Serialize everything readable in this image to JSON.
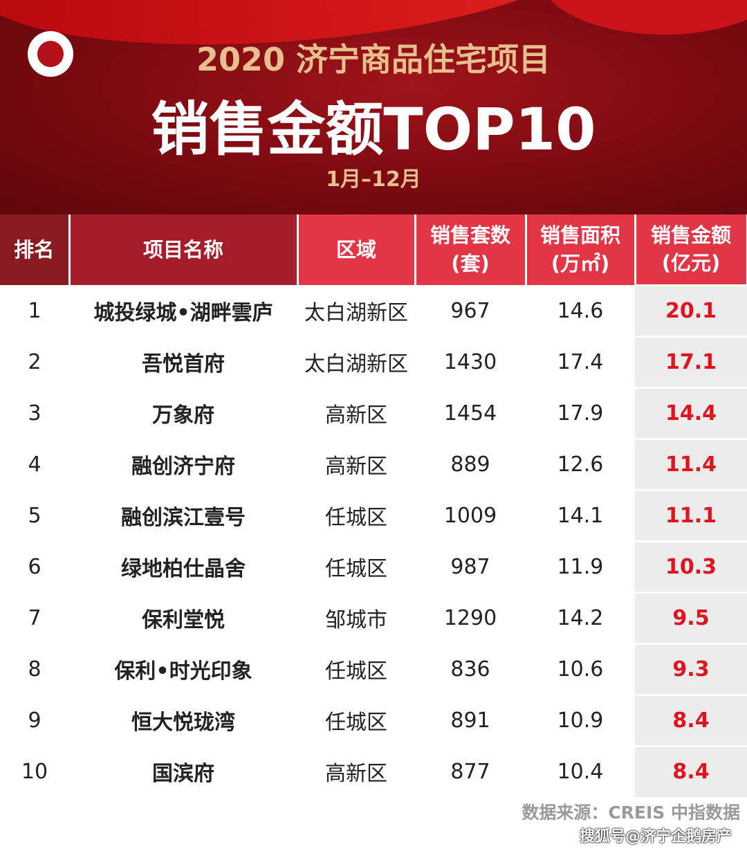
{
  "header": {
    "year_title": "2020 济宁商品住宅项目",
    "main_title": "销售金额TOP10",
    "period": "1月–12月"
  },
  "columns": [
    "排名",
    "项目名称",
    "区域",
    "销售套数\n(套)",
    "销售面积\n(万㎡)",
    "销售金额\n(亿元)"
  ],
  "rows": [
    [
      "1",
      "城投绿城•湖畔雲庐",
      "太白湖新区",
      "967",
      "14.6",
      "20.1"
    ],
    [
      "2",
      "吾悦首府",
      "太白湖新区",
      "1430",
      "17.4",
      "17.1"
    ],
    [
      "3",
      "万象府",
      "高新区",
      "1454",
      "17.9",
      "14.4"
    ],
    [
      "4",
      "融创济宁府",
      "高新区",
      "889",
      "12.6",
      "11.4"
    ],
    [
      "5",
      "融创滨江壹号",
      "任城区",
      "1009",
      "14.1",
      "11.1"
    ],
    [
      "6",
      "绿地柏仕晶舍",
      "任城区",
      "987",
      "11.9",
      "10.3"
    ],
    [
      "7",
      "保利堂悦",
      "邹城市",
      "1290",
      "14.2",
      "9.5"
    ],
    [
      "8",
      "保利•时光印象",
      "任城区",
      "836",
      "10.6",
      "9.3"
    ],
    [
      "9",
      "恒大悦珑湾",
      "任城区",
      "891",
      "10.9",
      "8.4"
    ],
    [
      "10",
      "国滨府",
      "高新区",
      "877",
      "10.4",
      "8.4"
    ]
  ],
  "footer": {
    "source": "数据来源：CREIS 中指数据",
    "watermark": "搜狐号@济宁企鹅房产"
  },
  "colors": {
    "banner": "#7a0a10",
    "gold": "#e8bf8e",
    "header_accent": "#e23546",
    "amount": "#e0141e"
  }
}
